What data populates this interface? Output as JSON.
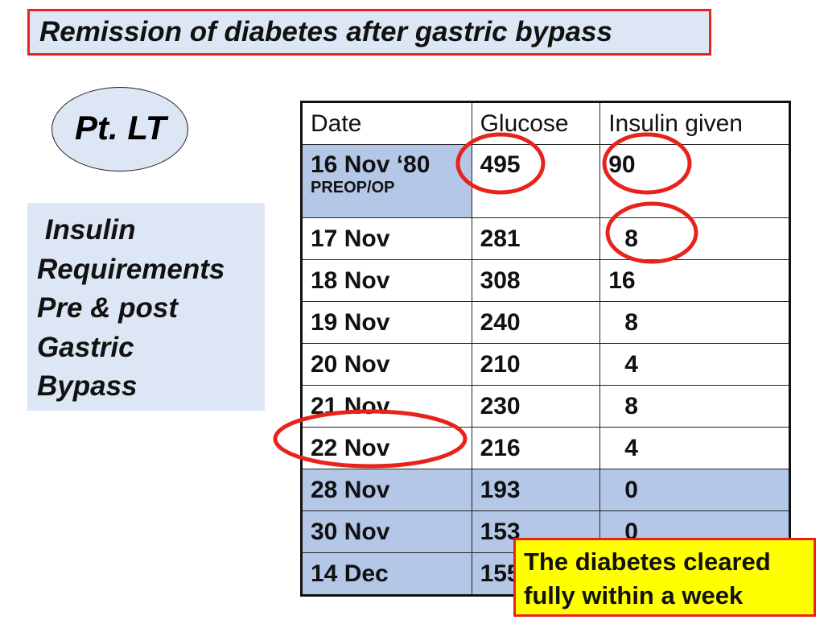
{
  "title": "Remission of diabetes after gastric bypass",
  "patient": "Pt. LT",
  "side_text": " Insulin\nRequirements\nPre & post\nGastric\nBypass",
  "table": {
    "headers": [
      "Date",
      "Glucose",
      "Insulin given"
    ],
    "rows": [
      {
        "date": "16 Nov ‘80",
        "sub": "PREOP/OP",
        "glucose": "495",
        "insulin": "90"
      },
      {
        "date": "17 Nov",
        "glucose": "281",
        "insulin": "8"
      },
      {
        "date": "18 Nov",
        "glucose": "308",
        "insulin": "16"
      },
      {
        "date": "19 Nov",
        "glucose": "240",
        "insulin": "8"
      },
      {
        "date": "20 Nov",
        "glucose": "210",
        "insulin": "4"
      },
      {
        "date": "21 Nov",
        "glucose": "230",
        "insulin": "8"
      },
      {
        "date": "22 Nov",
        "glucose": "216",
        "insulin": "4"
      },
      {
        "date": "28 Nov",
        "glucose": "193",
        "insulin": "0"
      },
      {
        "date": "30 Nov",
        "glucose": "153",
        "insulin": "0"
      },
      {
        "date": "14 Dec",
        "glucose": "155",
        "insulin": ""
      }
    ]
  },
  "note": "The diabetes cleared fully within a week",
  "colors": {
    "accent_red": "#e8231c",
    "highlight_blue": "#b4c7e7",
    "box_blue": "#dce6f4",
    "note_yellow": "#ffff00"
  }
}
